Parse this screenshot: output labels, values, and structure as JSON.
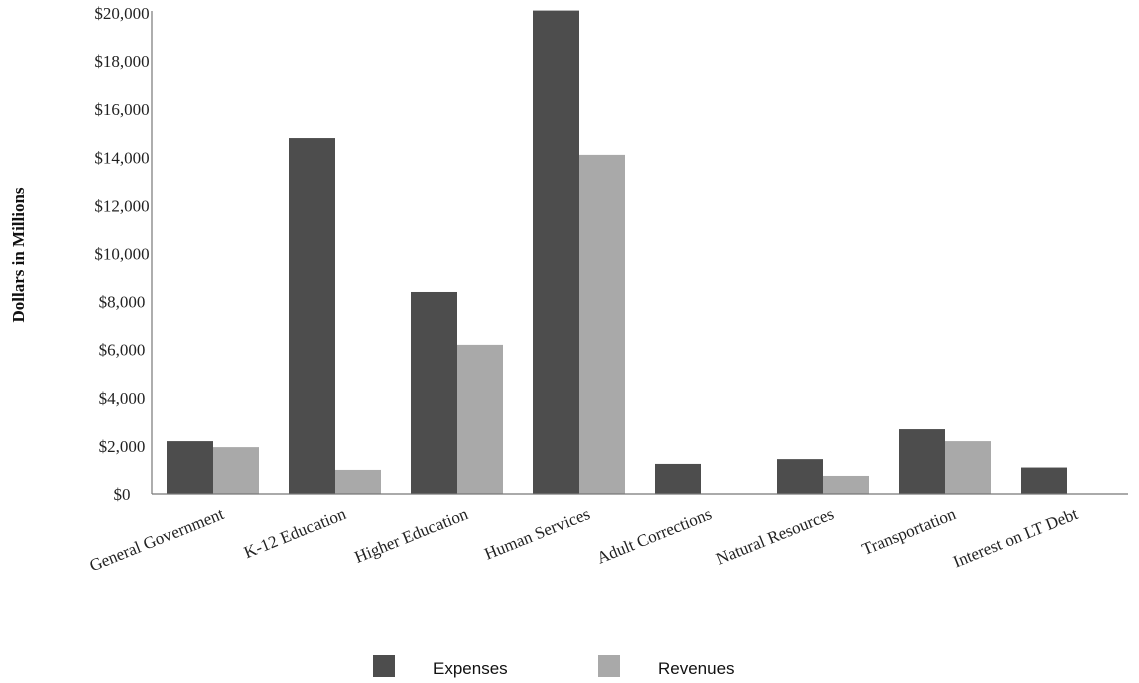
{
  "chart_data": {
    "type": "bar",
    "ylabel": "Dollars in Millions",
    "ylim": [
      0,
      20000
    ],
    "yticks": [
      "$0",
      "$2,000",
      "$4,000",
      "$6,000",
      "$8,000",
      "$10,000",
      "$12,000",
      "$14,000",
      "$16,000",
      "$18,000",
      "$20,000"
    ],
    "categories": [
      "General Government",
      "K-12 Education",
      "Higher Education",
      "Human Services",
      "Adult Corrections",
      "Natural Resources",
      "Transportation",
      "Interest on LT Debt"
    ],
    "series": [
      {
        "name": "Expenses",
        "color": "#4d4d4d",
        "values": [
          2200,
          14800,
          8400,
          20100,
          1250,
          1450,
          2700,
          1100
        ]
      },
      {
        "name": "Revenues",
        "color": "#a9a9a9",
        "values": [
          1950,
          1000,
          6200,
          14100,
          0,
          750,
          2200,
          0
        ]
      }
    ],
    "legend_position": "bottom",
    "grid": false
  }
}
